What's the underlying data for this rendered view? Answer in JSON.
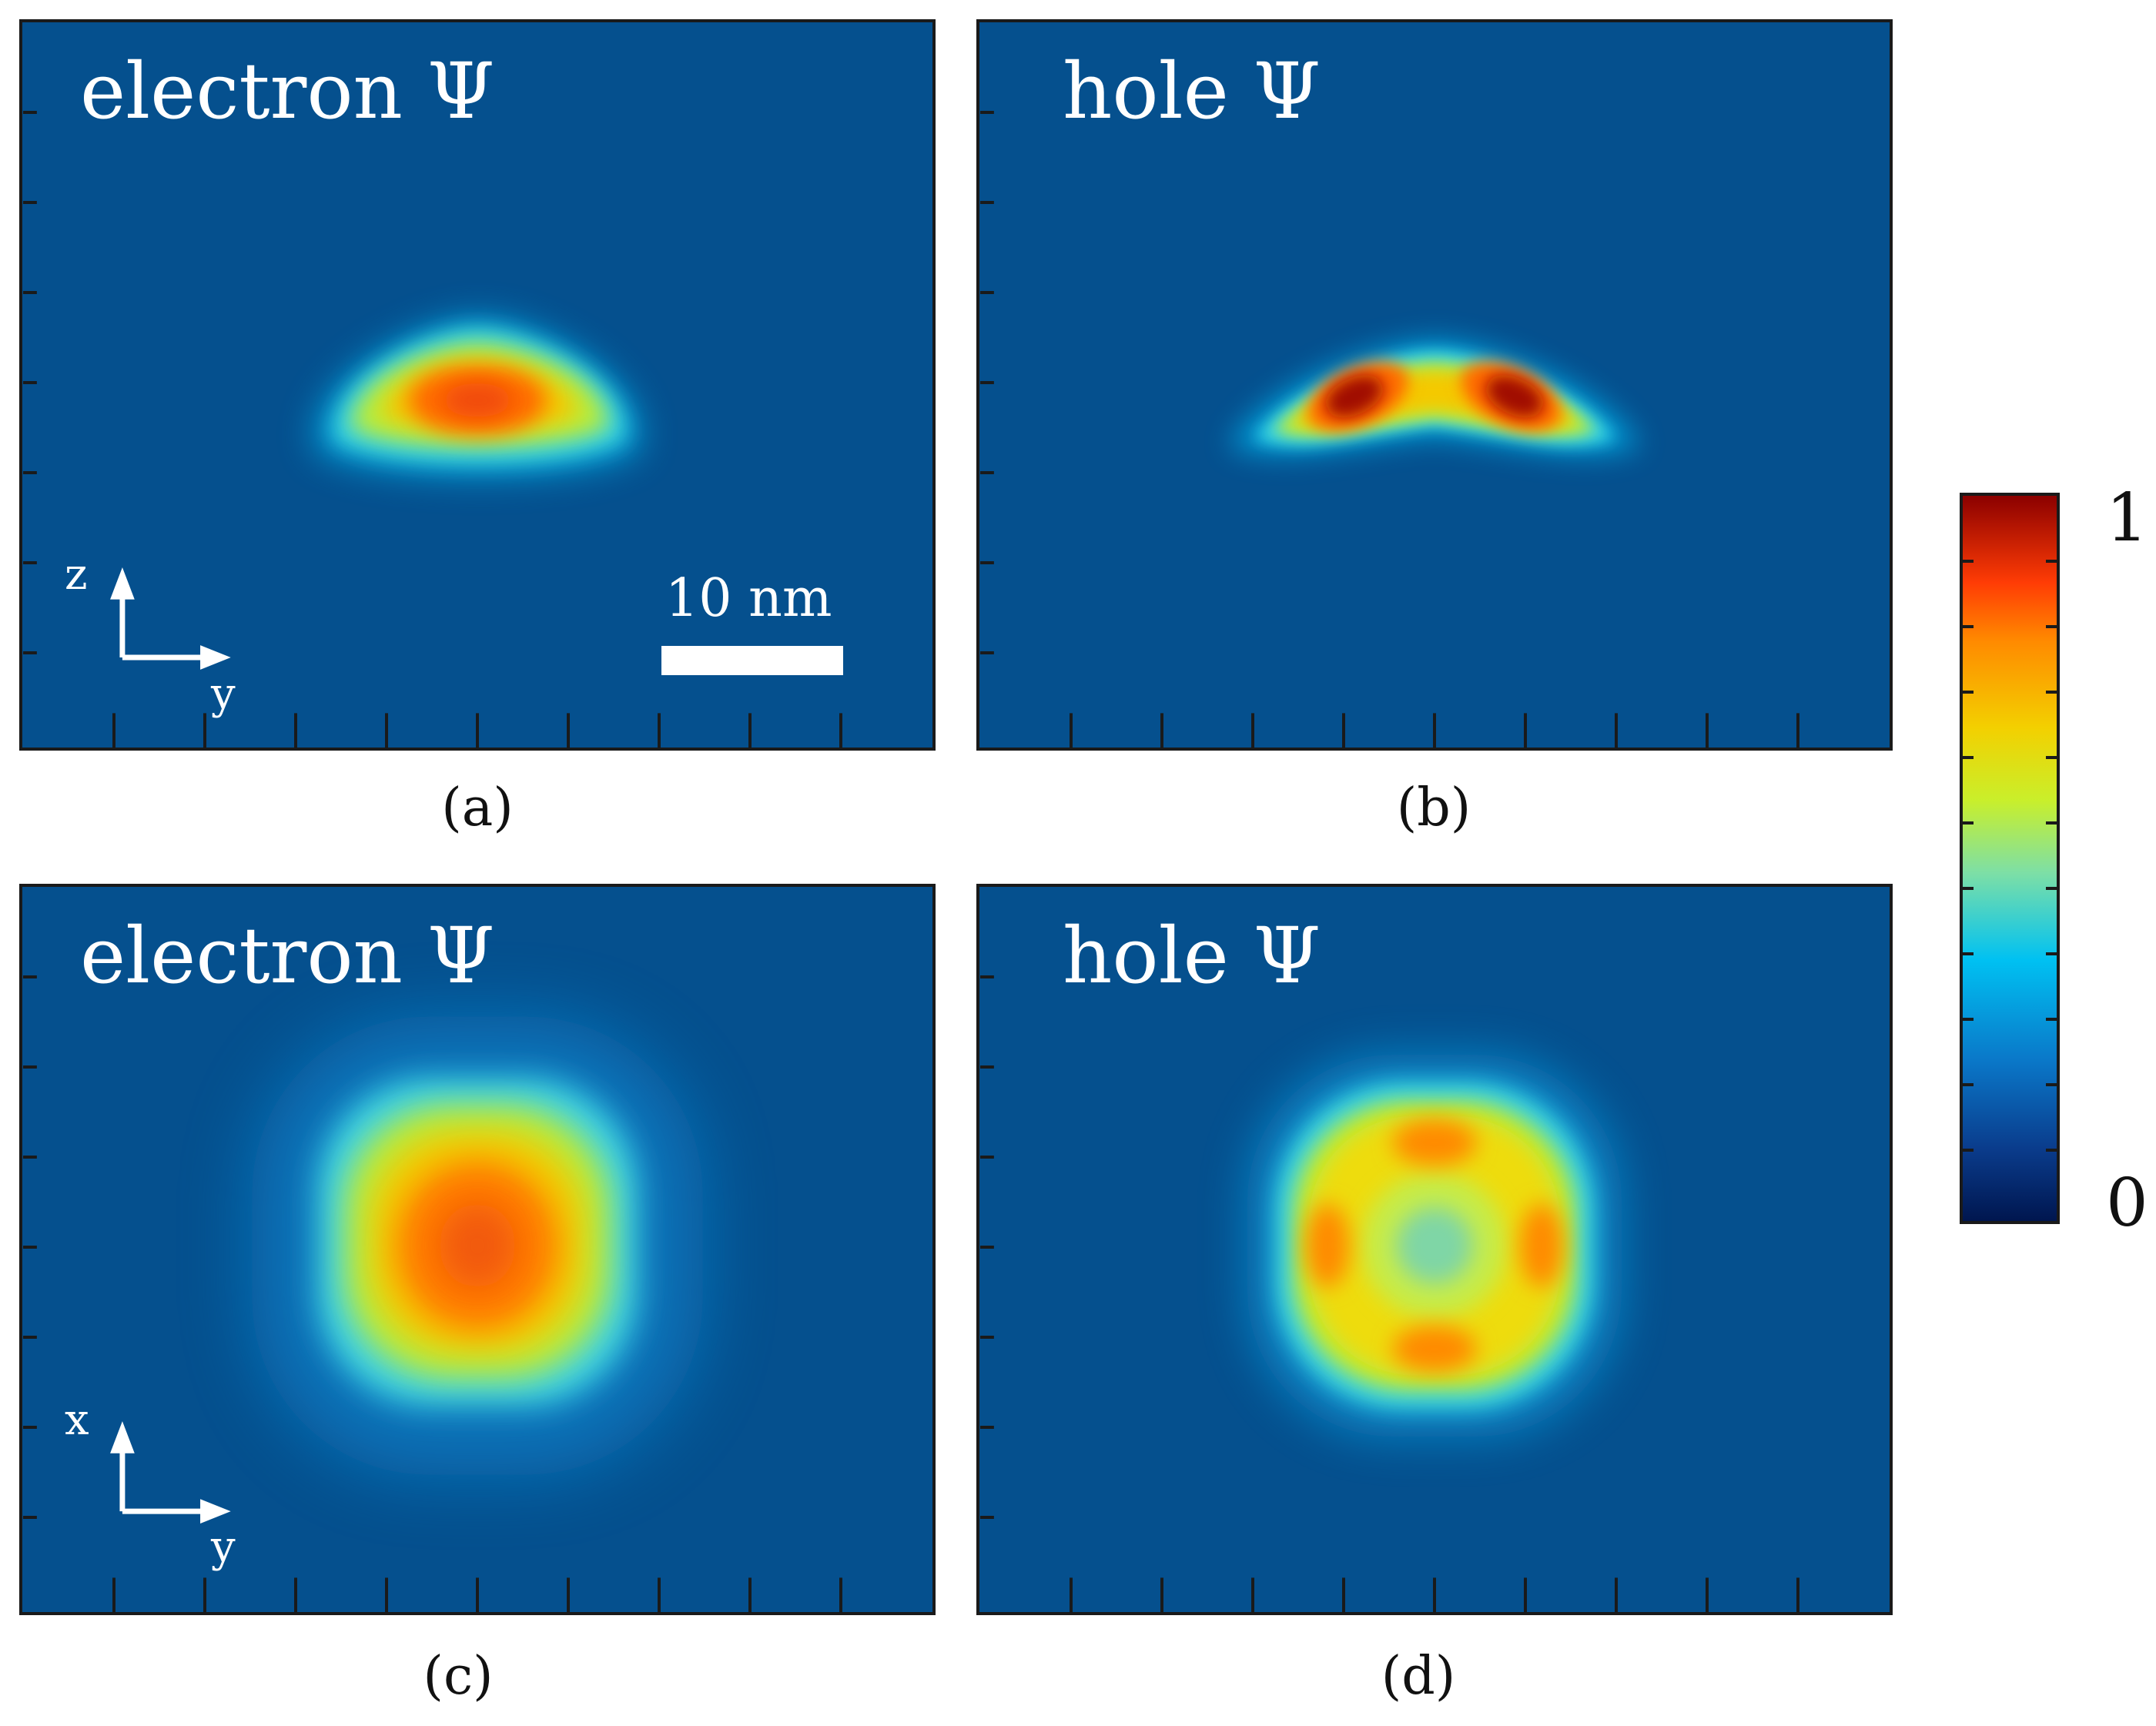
{
  "chart_data": {
    "type": "heatmap",
    "quantity": "normalized wavefunction |Ψ|",
    "colorbar": {
      "min": 0,
      "max": 1,
      "min_label": "0",
      "max_label": "1",
      "colormap": [
        "#00164f",
        "#0a77c8",
        "#00c1f2",
        "#c9ef2b",
        "#f3d000",
        "#ff8a00",
        "#ff3c05",
        "#8b0000"
      ]
    },
    "scale_bar": {
      "label": "10 nm",
      "length_nm": 10
    },
    "panels": [
      {
        "id": "a",
        "caption": "(a)",
        "title": "electron Ψ",
        "plane": "y-z",
        "axes": {
          "vertical": "z",
          "horizontal": "y"
        },
        "peak_value": 0.85,
        "shape": "single lobe, dome/lens shaped"
      },
      {
        "id": "b",
        "caption": "(b)",
        "title": "hole Ψ",
        "plane": "y-z",
        "axes": {
          "vertical": "",
          "horizontal": ""
        },
        "peak_value": 1.0,
        "shape": "two lobes on a bent arc"
      },
      {
        "id": "c",
        "caption": "(c)",
        "title": "electron Ψ",
        "plane": "x-y",
        "axes": {
          "vertical": "x",
          "horizontal": "y"
        },
        "peak_value": 0.82,
        "shape": "single rounded-square lobe"
      },
      {
        "id": "d",
        "caption": "(d)",
        "title": "hole Ψ",
        "plane": "x-y",
        "axes": {
          "vertical": "",
          "horizontal": ""
        },
        "peak_value": 0.78,
        "shape": "ring with four maxima, minimum at center"
      }
    ]
  },
  "colors": {
    "background": "#05508e",
    "text": "#ffffff",
    "frame": "#1a1a1a"
  }
}
